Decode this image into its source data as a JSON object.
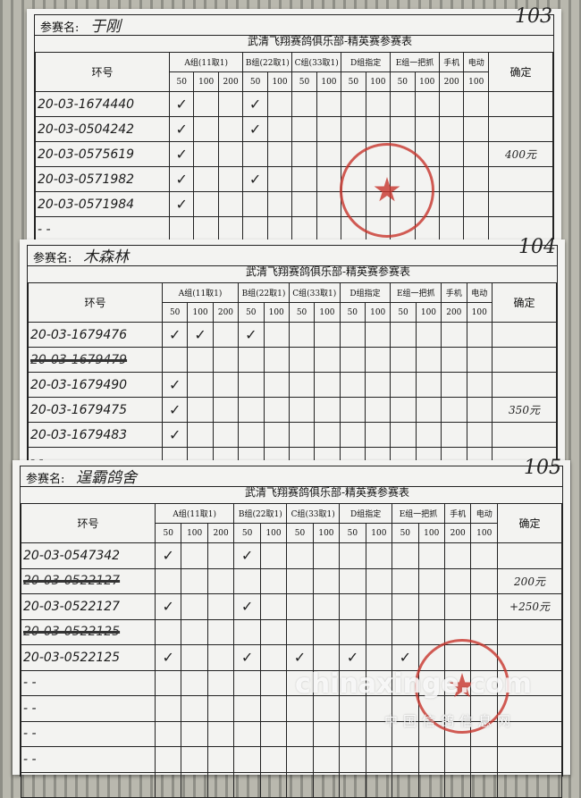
{
  "form": {
    "name_label": "参赛名:",
    "title": "武清飞翔赛鸽俱乐部-精英赛参赛表",
    "ring_header": "环号",
    "confirm_header": "确定",
    "groups": [
      {
        "label": "A组(11取1)",
        "subs": [
          "50",
          "100",
          "200"
        ]
      },
      {
        "label": "B组(22取1)",
        "subs": [
          "50",
          "100"
        ]
      },
      {
        "label": "C组(33取1)",
        "subs": [
          "50",
          "100"
        ]
      },
      {
        "label": "D组指定",
        "subs": [
          "50",
          "100"
        ]
      },
      {
        "label": "E组一把抓",
        "subs": [
          "50",
          "100"
        ]
      },
      {
        "label": "手机",
        "subs": [
          "200"
        ]
      },
      {
        "label": "电动",
        "subs": [
          "100"
        ]
      }
    ],
    "check_mark": "✓"
  },
  "sheets": [
    {
      "number": "103",
      "participant": "于刚",
      "confirm_amount": "400元",
      "rows": [
        {
          "ring": "20-03-1674440",
          "checks": [
            0,
            3
          ]
        },
        {
          "ring": "20-03-0504242",
          "checks": [
            0,
            3
          ]
        },
        {
          "ring": "20-03-0575619",
          "checks": [
            0
          ]
        },
        {
          "ring": "20-03-0571982",
          "checks": [
            0,
            3
          ]
        },
        {
          "ring": "20-03-0571984",
          "checks": [
            0
          ]
        },
        {
          "ring": "- -",
          "checks": []
        }
      ]
    },
    {
      "number": "104",
      "participant": "木森林",
      "confirm_amount": "350元",
      "rows": [
        {
          "ring": "20-03-1679476",
          "checks": [
            0,
            1,
            3
          ]
        },
        {
          "ring": "20-03-1679479",
          "checks": [],
          "struck": true
        },
        {
          "ring": "20-03-1679490",
          "checks": [
            0
          ]
        },
        {
          "ring": "20-03-1679475",
          "checks": [
            0
          ]
        },
        {
          "ring": "20-03-1679483",
          "checks": [
            0
          ]
        },
        {
          "ring": "- -",
          "checks": []
        }
      ]
    },
    {
      "number": "105",
      "participant": "逞霸鸽舍",
      "confirm_amount": "200元",
      "confirm_extra": "+250元",
      "rows": [
        {
          "ring": "20-03-0547342",
          "checks": [
            0,
            3
          ]
        },
        {
          "ring": "20-03-0522127",
          "checks": [],
          "struck": true
        },
        {
          "ring": "20-03-0522127",
          "checks": [
            0,
            3
          ]
        },
        {
          "ring": "20-03-0522125",
          "checks": [],
          "struck": true
        },
        {
          "ring": "20-03-0522125",
          "checks": [
            0,
            3,
            5,
            7,
            9
          ]
        },
        {
          "ring": "- -",
          "checks": []
        },
        {
          "ring": "- -",
          "checks": []
        },
        {
          "ring": "- -",
          "checks": []
        },
        {
          "ring": "- -",
          "checks": []
        },
        {
          "ring": "",
          "checks": []
        }
      ]
    }
  ],
  "watermark": {
    "brand": "chinaxinge.com",
    "subtitle": "中国信鸽信息网"
  },
  "colors": {
    "stamp": "#c8352c",
    "paper": "#f3f3f1",
    "ink": "#222222"
  }
}
